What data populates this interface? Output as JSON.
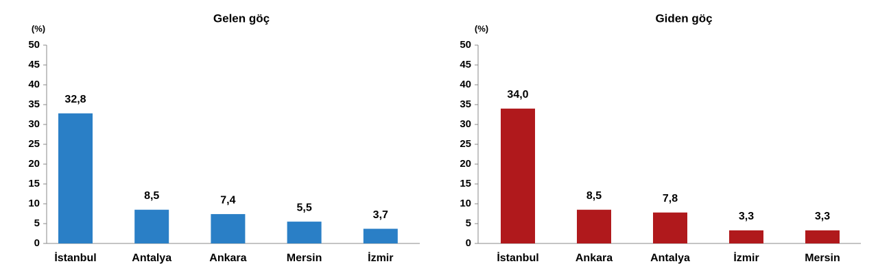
{
  "chart_data": [
    {
      "type": "bar",
      "title": "Gelen göç",
      "y_label": "(%)",
      "categories": [
        "İstanbul",
        "Antalya",
        "Ankara",
        "Mersin",
        "İzmir"
      ],
      "values": [
        32.8,
        8.5,
        7.4,
        5.5,
        3.7
      ],
      "value_labels": [
        "32,8",
        "8,5",
        "7,4",
        "5,5",
        "3,7"
      ],
      "color": "#2a7fc6",
      "ylim": [
        0,
        50
      ],
      "yticks": [
        0,
        5,
        10,
        15,
        20,
        25,
        30,
        35,
        40,
        45,
        50
      ]
    },
    {
      "type": "bar",
      "title": "Giden göç",
      "y_label": "(%)",
      "categories": [
        "İstanbul",
        "Ankara",
        "Antalya",
        "İzmir",
        "Mersin"
      ],
      "values": [
        34.0,
        8.5,
        7.8,
        3.3,
        3.3
      ],
      "value_labels": [
        "34,0",
        "8,5",
        "7,8",
        "3,3",
        "3,3"
      ],
      "color": "#b0191c",
      "ylim": [
        0,
        50
      ],
      "yticks": [
        0,
        5,
        10,
        15,
        20,
        25,
        30,
        35,
        40,
        45,
        50
      ]
    }
  ]
}
